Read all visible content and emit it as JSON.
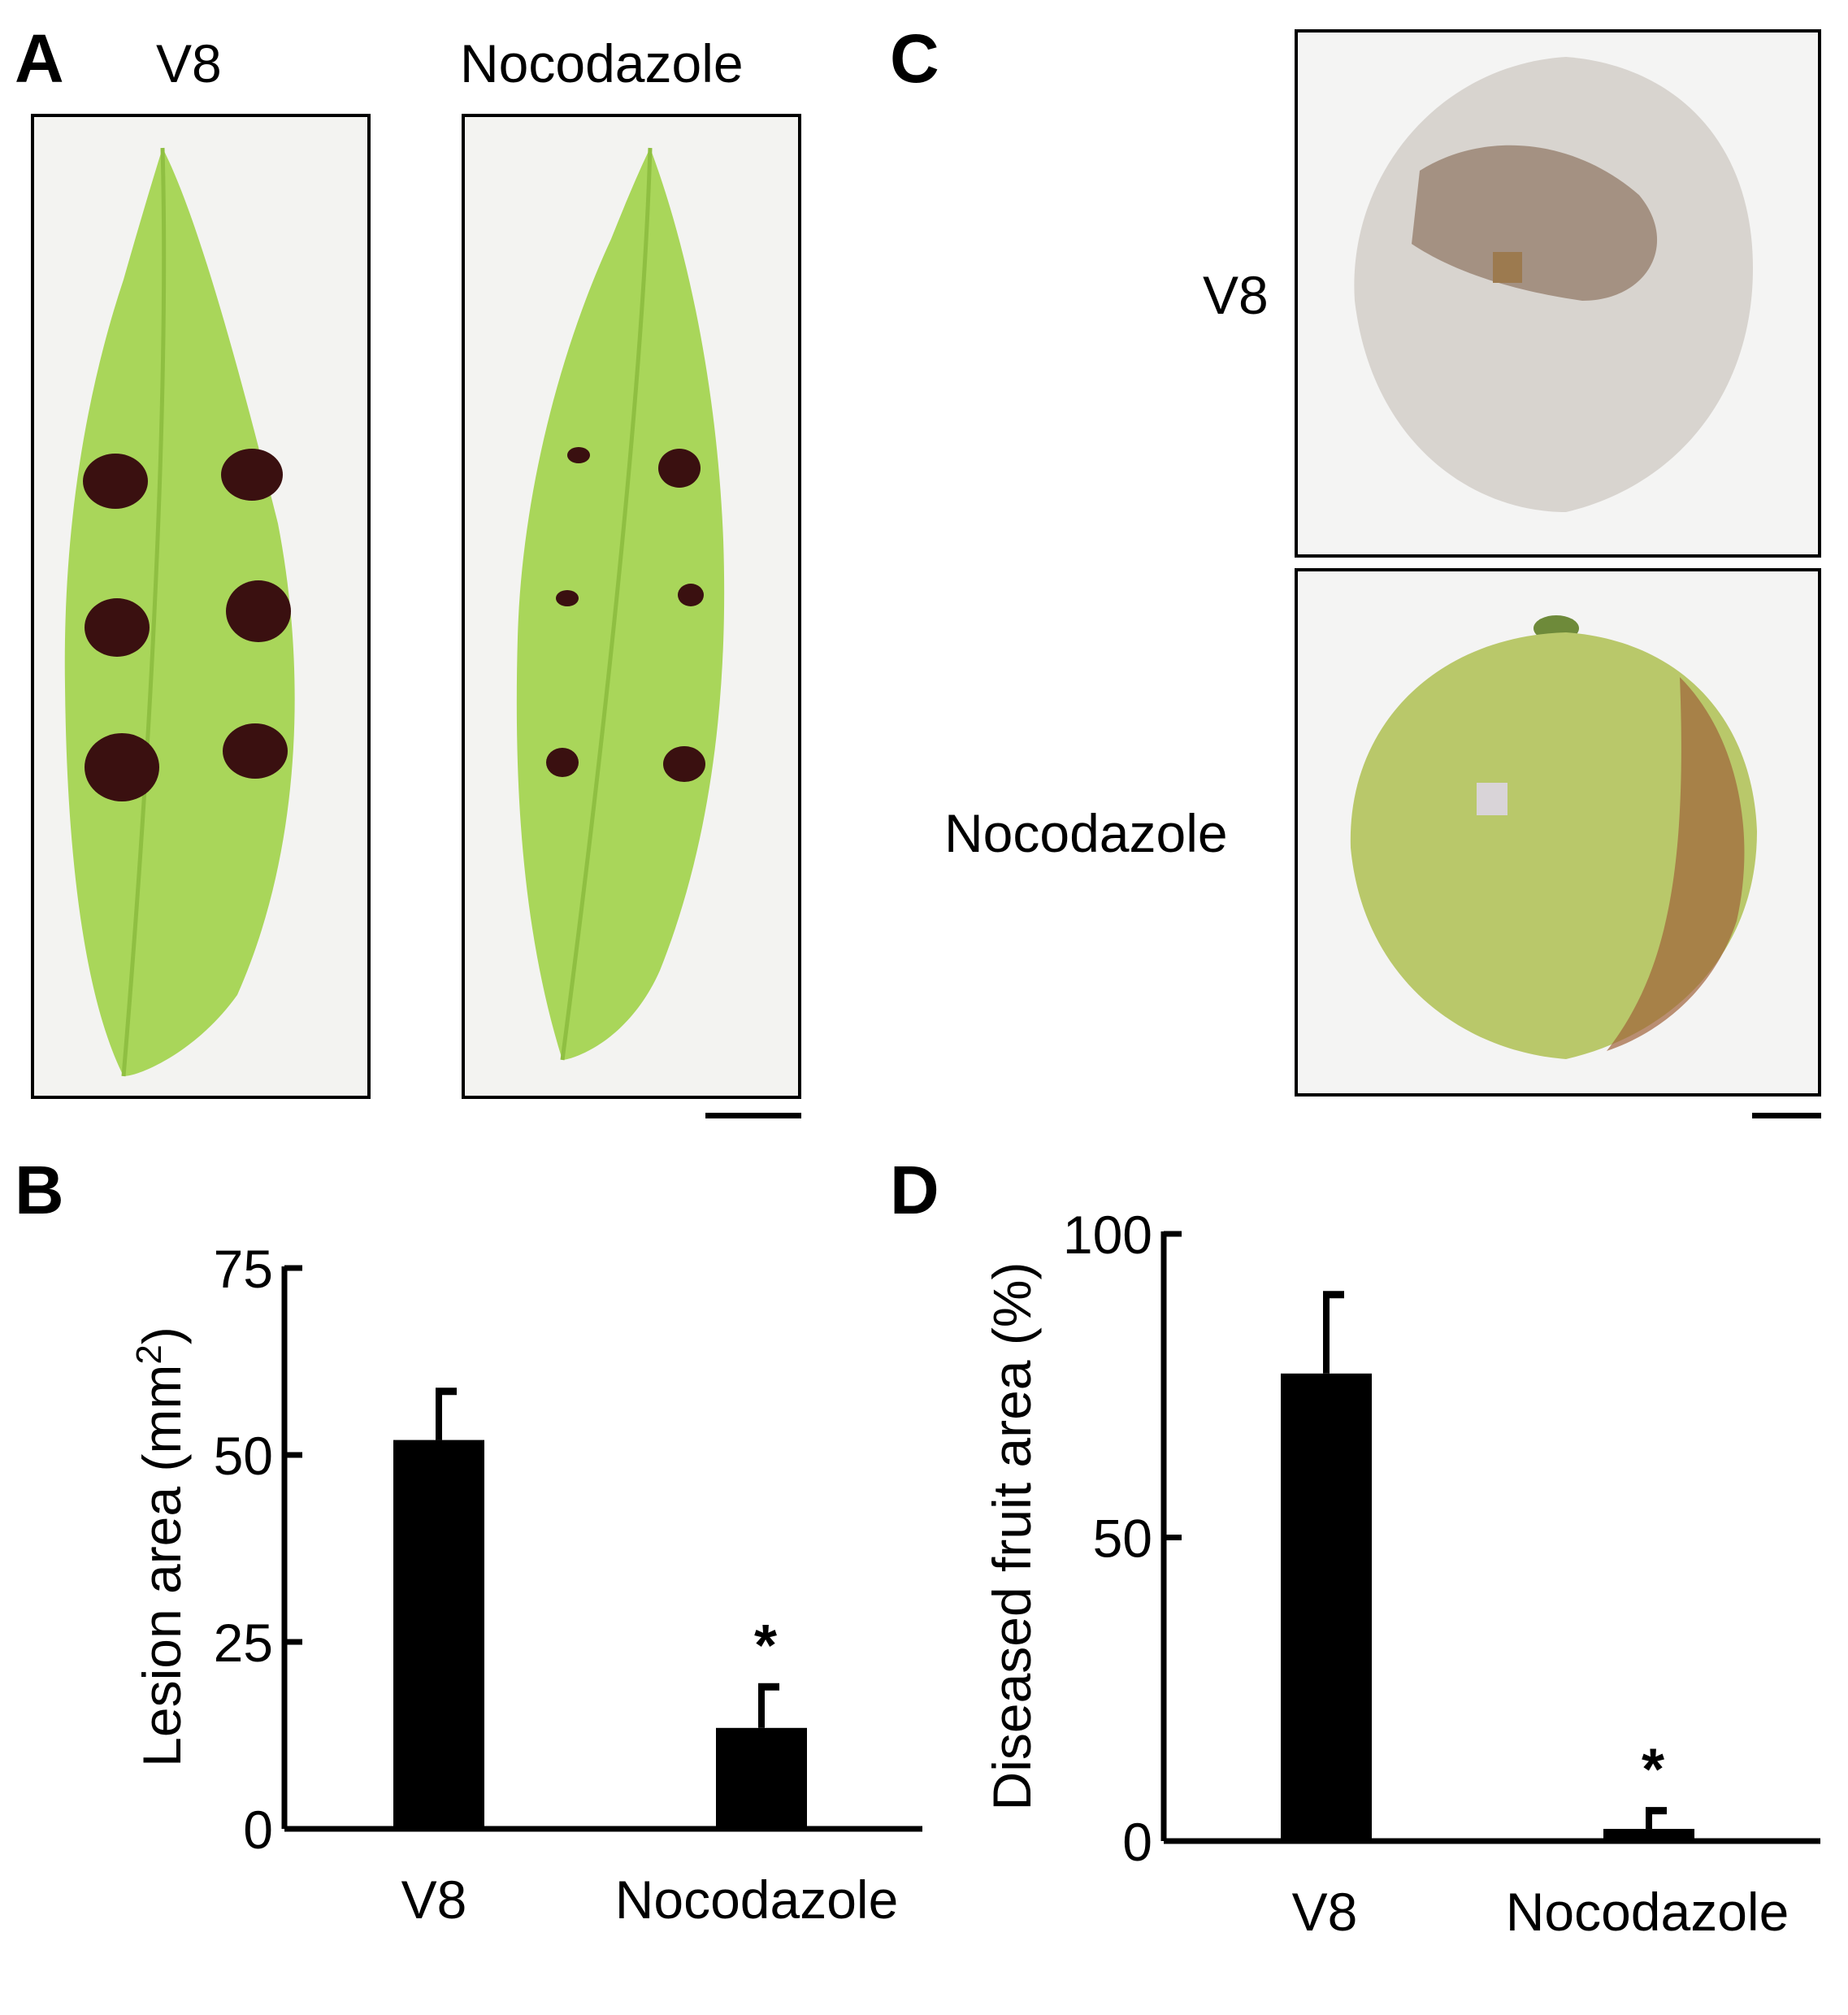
{
  "panels": {
    "A": {
      "letter": "A",
      "conditions": [
        "V8",
        "Nocodazole"
      ]
    },
    "B": {
      "letter": "B"
    },
    "C": {
      "letter": "C",
      "conditions": [
        "V8",
        "Nocodazole"
      ]
    },
    "D": {
      "letter": "D"
    }
  },
  "colors": {
    "bar": "#000000",
    "leaf": "#a9d65a",
    "lesion": "#3a1010",
    "fruit_mold": "#d8d4cf",
    "fruit_healthy": "#b9c86a"
  },
  "chart_data": [
    {
      "panel": "B",
      "type": "bar",
      "categories": [
        "V8",
        "Nocodazole"
      ],
      "values": [
        52,
        13.5
      ],
      "errors": [
        6.5,
        5.5
      ],
      "annotations": [
        "",
        "*"
      ],
      "ylabel": "Lesion area (mm",
      "ylabel_superscript": "2",
      "ylabel_close": ")",
      "ylim": [
        0,
        75
      ],
      "yticks": [
        "0",
        "25",
        "50",
        "75"
      ]
    },
    {
      "panel": "D",
      "type": "bar",
      "categories": [
        "V8",
        "Nocodazole"
      ],
      "values": [
        77,
        2
      ],
      "errors": [
        13,
        3
      ],
      "annotations": [
        "",
        "*"
      ],
      "ylabel": "Diseased fruit area (%)",
      "ylim": [
        0,
        100
      ],
      "yticks": [
        "0",
        "50",
        "100"
      ]
    }
  ]
}
